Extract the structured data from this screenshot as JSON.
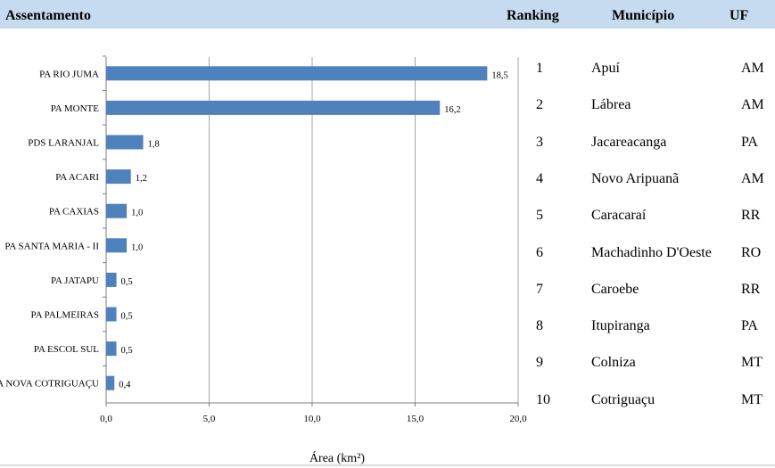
{
  "header": {
    "col_assentamento": "Assentamento",
    "col_ranking": "Ranking",
    "col_municipio": "Município",
    "col_uf": "UF",
    "background": "#c6dbef"
  },
  "chart_data": {
    "type": "bar",
    "orientation": "horizontal",
    "categories": [
      "PA RIO JUMA",
      "PA MONTE",
      "PDS LARANJAL",
      "PA ACARI",
      "PA CAXIAS",
      "PA SANTA MARIA - II",
      "PA JATAPU",
      "PA PALMEIRAS",
      "PA ESCOL SUL",
      "PA NOVA COTRIGUAÇU"
    ],
    "values": [
      18.5,
      16.2,
      1.8,
      1.2,
      1.0,
      1.0,
      0.5,
      0.5,
      0.5,
      0.4
    ],
    "value_labels": [
      "18,5",
      "16,2",
      "1,8",
      "1,2",
      "1,0",
      "1,0",
      "0,5",
      "0,5",
      "0,5",
      "0,4"
    ],
    "xlabel": "Área (km²)",
    "xlim": [
      0,
      20
    ],
    "xticks": [
      0,
      5,
      10,
      15,
      20
    ],
    "xtick_labels": [
      "0,0",
      "5,0",
      "10,0",
      "15,0",
      "20,0"
    ],
    "grid": true,
    "bar_color": "#4f81bd",
    "grid_color": "#a6a6a6"
  },
  "table": {
    "rows": [
      {
        "ranking": "1",
        "municipio": "Apuí",
        "uf": "AM"
      },
      {
        "ranking": "2",
        "municipio": "Lábrea",
        "uf": "AM"
      },
      {
        "ranking": "3",
        "municipio": "Jacareacanga",
        "uf": "PA"
      },
      {
        "ranking": "4",
        "municipio": "Novo Aripuanã",
        "uf": "AM"
      },
      {
        "ranking": "5",
        "municipio": "Caracaraí",
        "uf": "RR"
      },
      {
        "ranking": "6",
        "municipio": "Machadinho D'Oeste",
        "uf": "RO"
      },
      {
        "ranking": "7",
        "municipio": "Caroebe",
        "uf": "RR"
      },
      {
        "ranking": "8",
        "municipio": "Itupiranga",
        "uf": "PA"
      },
      {
        "ranking": "9",
        "municipio": "Colniza",
        "uf": "MT"
      },
      {
        "ranking": "10",
        "municipio": "Cotriguaçu",
        "uf": "MT"
      }
    ]
  }
}
